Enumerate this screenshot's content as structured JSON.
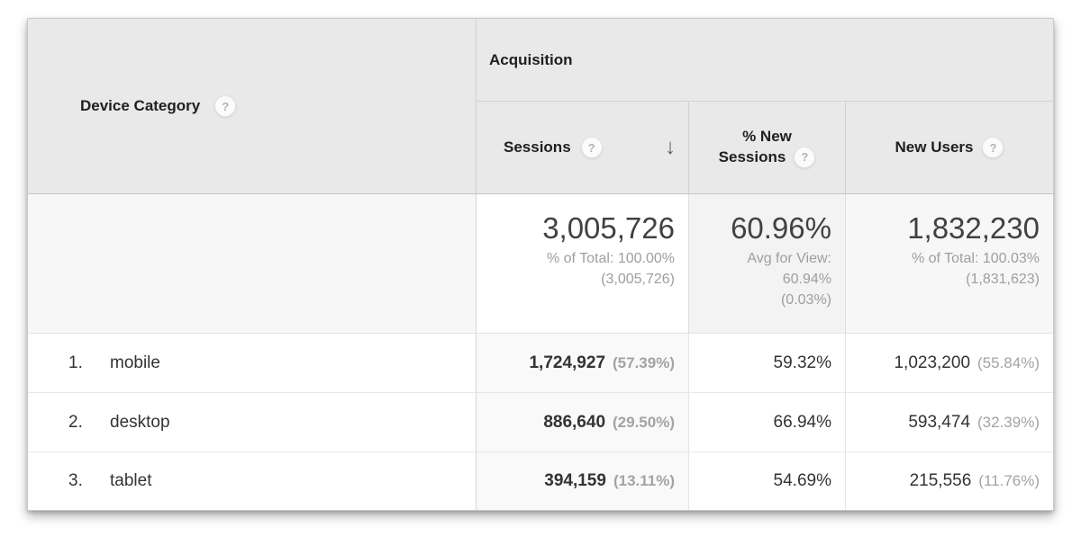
{
  "table": {
    "dimension_header": {
      "label": "Device Category"
    },
    "group_header": {
      "label": "Acquisition"
    },
    "icons": {
      "help": "?",
      "sort_desc": "↓"
    },
    "metric_columns": [
      {
        "label": "Sessions",
        "sorted": "descending"
      },
      {
        "label": "% New Sessions",
        "label_lines": [
          "% New",
          "Sessions"
        ]
      },
      {
        "label": "New Users"
      }
    ],
    "summary": {
      "sessions": {
        "value": "3,005,726",
        "sub": [
          "% of Total: 100.00%",
          "(3,005,726)"
        ]
      },
      "pct_new": {
        "value": "60.96%",
        "sub": [
          "Avg for View:",
          "60.94%",
          "(0.03%)"
        ]
      },
      "new_users": {
        "value": "1,832,230",
        "sub": [
          "% of Total: 100.03%",
          "(1,831,623)"
        ]
      }
    },
    "rows": [
      {
        "rank": "1.",
        "label": "mobile",
        "sessions": "1,724,927",
        "sessions_share": "(57.39%)",
        "pct_new": "59.32%",
        "new_users": "1,023,200",
        "new_users_share": "(55.84%)"
      },
      {
        "rank": "2.",
        "label": "desktop",
        "sessions": "886,640",
        "sessions_share": "(29.50%)",
        "pct_new": "66.94%",
        "new_users": "593,474",
        "new_users_share": "(32.39%)"
      },
      {
        "rank": "3.",
        "label": "tablet",
        "sessions": "394,159",
        "sessions_share": "(13.11%)",
        "pct_new": "54.69%",
        "new_users": "215,556",
        "new_users_share": "(11.76%)"
      }
    ],
    "colors": {
      "header_bg": "#e9e9e9",
      "sorted_column_bg": "#f9f9f9",
      "summary_pct_bg": "#f3f3f3",
      "muted_text": "#9e9e9e",
      "value_text": "#333333"
    }
  }
}
